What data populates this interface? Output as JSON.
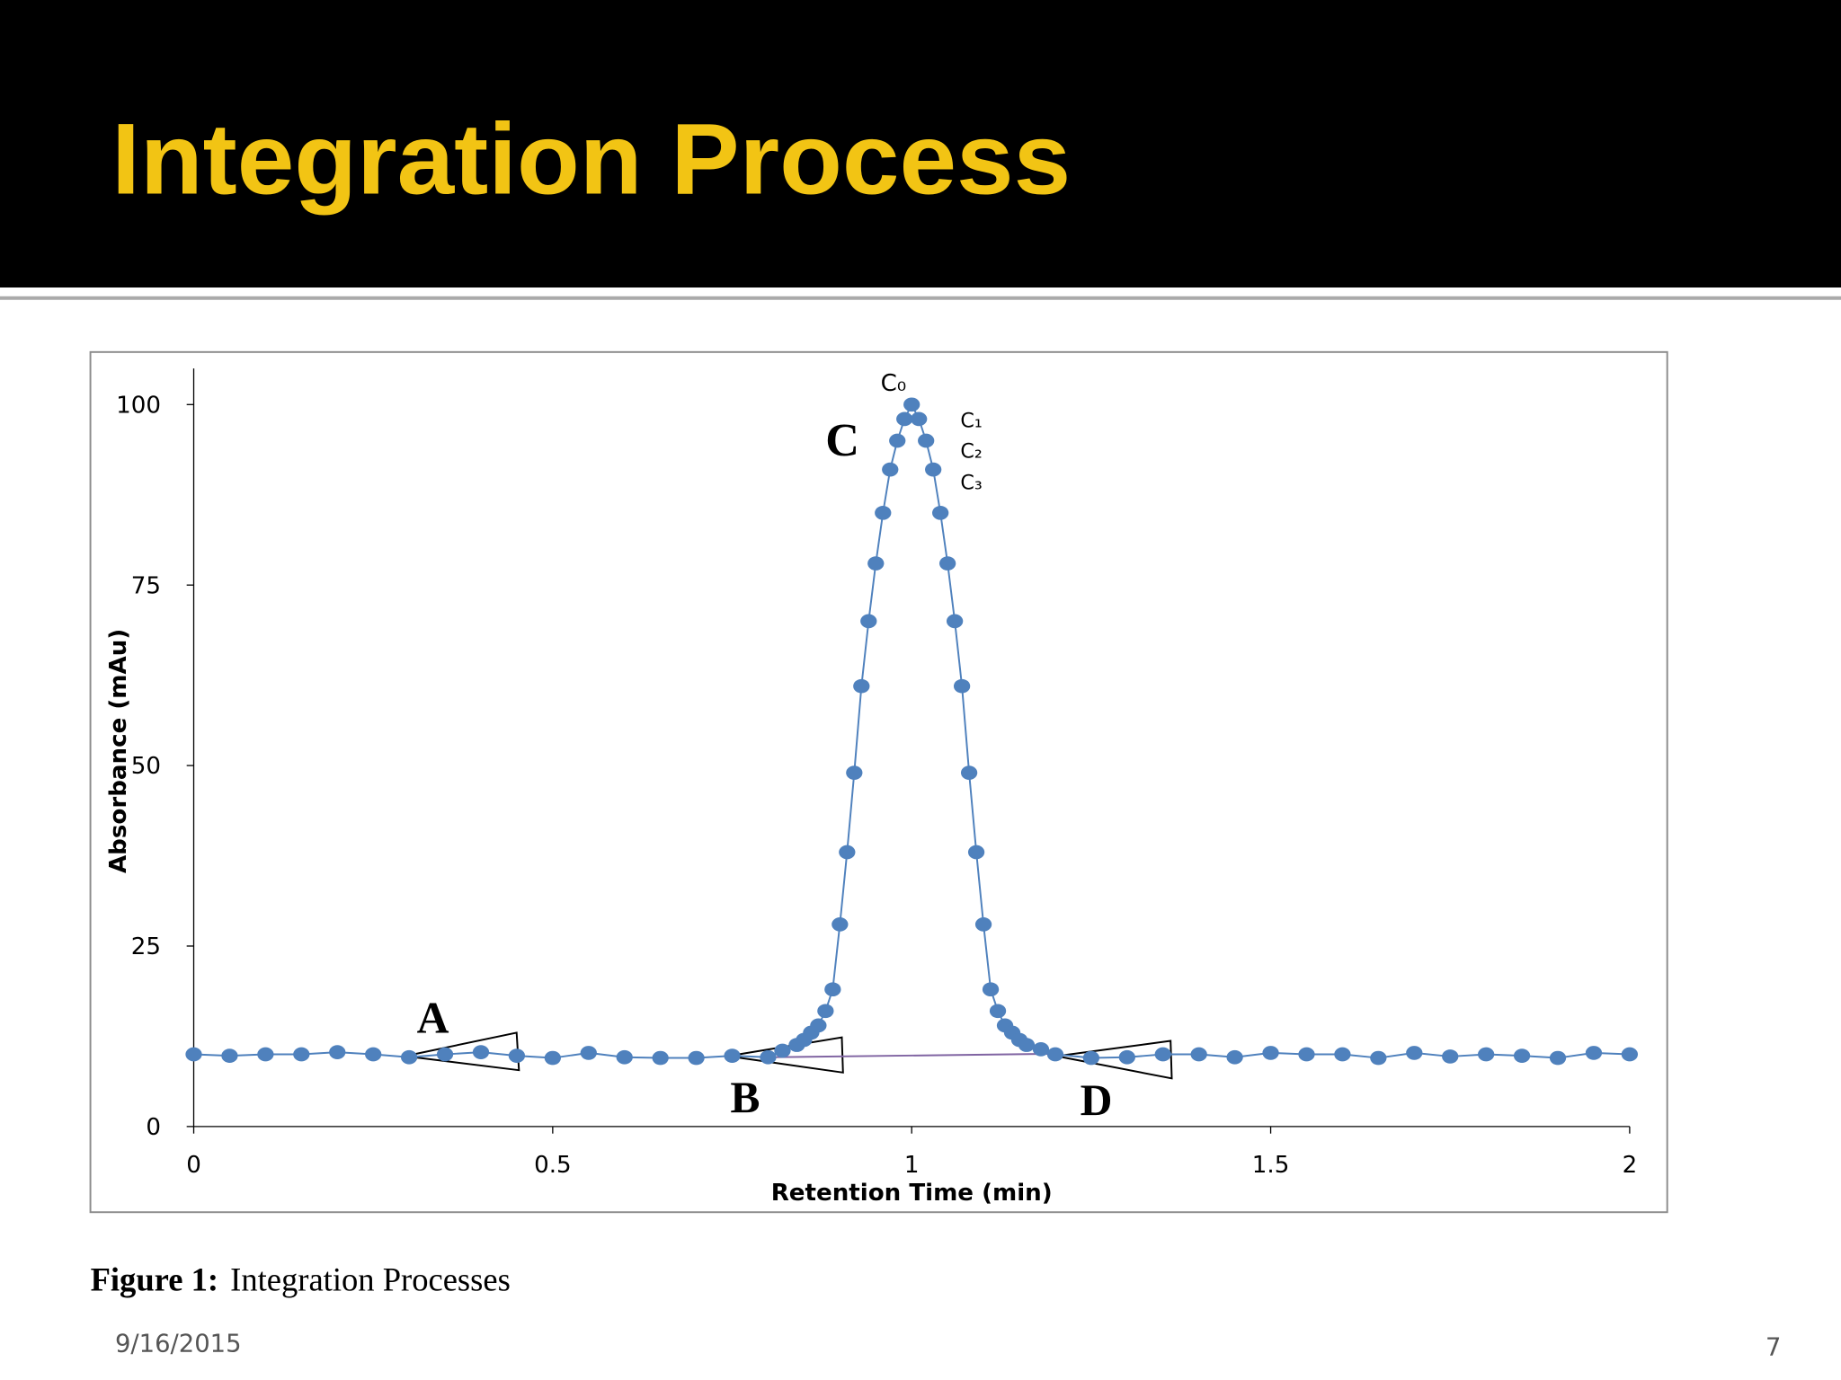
{
  "slide": {
    "title": "Integration Process",
    "caption_label": "Figure 1:",
    "caption_text": "Integration Processes",
    "date": "9/16/2015",
    "page": "7"
  },
  "chart_data": {
    "type": "line",
    "xlabel": "Retention Time (min)",
    "ylabel": "Absorbance (mAu)",
    "x": [
      0,
      0.05,
      0.1,
      0.15,
      0.2,
      0.25,
      0.3,
      0.35,
      0.4,
      0.45,
      0.5,
      0.55,
      0.6,
      0.65,
      0.7,
      0.75,
      0.8,
      0.82,
      0.84,
      0.85,
      0.86,
      0.87,
      0.88,
      0.89,
      0.9,
      0.91,
      0.92,
      0.93,
      0.94,
      0.95,
      0.96,
      0.97,
      0.98,
      0.99,
      1,
      1.01,
      1.02,
      1.03,
      1.04,
      1.05,
      1.06,
      1.07,
      1.08,
      1.09,
      1.1,
      1.11,
      1.12,
      1.13,
      1.14,
      1.15,
      1.16,
      1.18,
      1.2,
      1.25,
      1.3,
      1.35,
      1.4,
      1.45,
      1.5,
      1.55,
      1.6,
      1.65,
      1.7,
      1.75,
      1.8,
      1.85,
      1.9,
      1.95,
      2
    ],
    "values": [
      10,
      9.8,
      10,
      10,
      10.3,
      10,
      9.6,
      10,
      10.3,
      9.8,
      9.5,
      10.2,
      9.6,
      9.5,
      9.5,
      9.8,
      9.6,
      10.5,
      11.3,
      12,
      13,
      14,
      16,
      19,
      28,
      38,
      49,
      61,
      70,
      78,
      85,
      91,
      95,
      98,
      100,
      98,
      95,
      91,
      85,
      78,
      70,
      61,
      49,
      38,
      28,
      19,
      16,
      14,
      13,
      12,
      11.3,
      10.7,
      10,
      9.5,
      9.6,
      10,
      10,
      9.6,
      10.2,
      10,
      10,
      9.5,
      10.2,
      9.7,
      10,
      9.8,
      9.5,
      10.2,
      10
    ],
    "color": "#4f81bd",
    "xlim": [
      0,
      2
    ],
    "xticks": [
      0,
      0.5,
      1,
      1.5,
      2
    ],
    "ylim": [
      0,
      105
    ],
    "yticks": [
      0,
      25,
      50,
      75,
      100
    ],
    "annotations": [
      "C₀",
      "C₁",
      "C₂",
      "C₃",
      "C",
      "A",
      "B",
      "D"
    ]
  }
}
